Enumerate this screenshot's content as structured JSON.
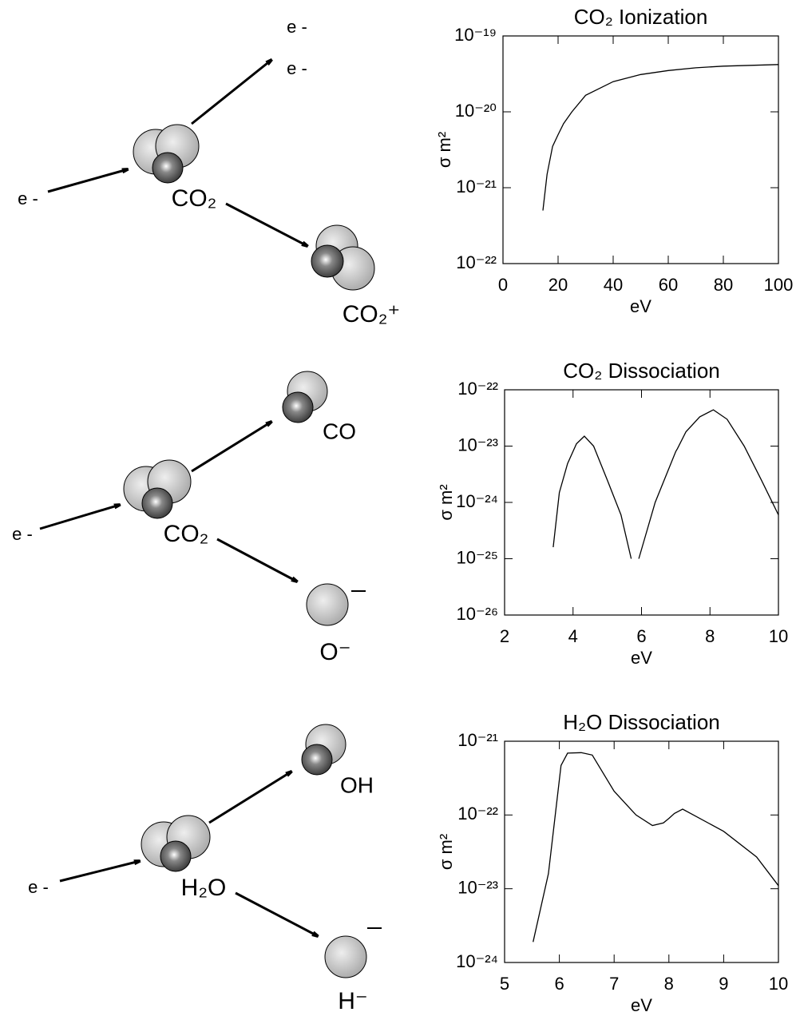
{
  "chart_data": [
    {
      "type": "line",
      "title": "CO₂ Ionization",
      "xlabel": "eV",
      "ylabel": "σ m²",
      "color": "#000000",
      "ylog": true,
      "x": [
        14.5,
        16,
        18,
        20,
        22,
        25,
        30,
        40,
        50,
        60,
        70,
        80,
        90,
        100
      ],
      "values": [
        5e-22,
        1.5e-21,
        3.5e-21,
        5e-21,
        7e-21,
        1e-20,
        1.65e-20,
        2.5e-20,
        3.1e-20,
        3.5e-20,
        3.8e-20,
        4e-20,
        4.1e-20,
        4.2e-20
      ],
      "xlim": [
        0,
        100
      ],
      "xticks": [
        0,
        20,
        40,
        60,
        80,
        100
      ],
      "ylim": [
        1e-22,
        1e-19
      ],
      "yticks": [
        {
          "value": 1e-22,
          "label": "10⁻²²"
        },
        {
          "value": 1e-21,
          "label": "10⁻²¹"
        },
        {
          "value": 1e-20,
          "label": "10⁻²⁰"
        },
        {
          "value": 1e-19,
          "label": "10⁻¹⁹"
        }
      ]
    },
    {
      "type": "line",
      "title": "CO₂ Dissociation",
      "xlabel": "eV",
      "ylabel": "σ m²",
      "color": "#000000",
      "ylog": true,
      "x": [
        3.42,
        3.6,
        3.84,
        4.1,
        4.33,
        4.6,
        5.0,
        5.4,
        5.7,
        5.8,
        5.92,
        6.4,
        7.0,
        7.05,
        7.3,
        7.7,
        8.1,
        8.5,
        9.0,
        9.5,
        10.0
      ],
      "values": [
        1.6e-25,
        1.5e-24,
        4.9e-24,
        1.1e-23,
        1.5e-23,
        1e-23,
        2.5e-24,
        6e-25,
        1e-25,
        null,
        1e-25,
        1e-24,
        8e-24,
        9e-24,
        1.8e-23,
        3.3e-23,
        4.4e-23,
        3e-23,
        1e-23,
        2.5e-24,
        6e-25
      ],
      "xlim": [
        2,
        10
      ],
      "xticks": [
        2,
        4,
        6,
        8,
        10
      ],
      "ylim": [
        1e-26,
        1e-22
      ],
      "yticks": [
        {
          "value": 1e-26,
          "label": "10⁻²⁶"
        },
        {
          "value": 1e-25,
          "label": "10⁻²⁵"
        },
        {
          "value": 1e-24,
          "label": "10⁻²⁴"
        },
        {
          "value": 1e-23,
          "label": "10⁻²³"
        },
        {
          "value": 1e-22,
          "label": "10⁻²²"
        }
      ]
    },
    {
      "type": "line",
      "title": "H₂O Dissociation",
      "xlabel": "eV",
      "ylabel": "σ m²",
      "color": "#000000",
      "ylog": true,
      "x": [
        5.52,
        5.8,
        6.03,
        6.15,
        6.4,
        6.6,
        7.0,
        7.4,
        7.7,
        7.9,
        8.0,
        8.1,
        8.25,
        9.0,
        9.6,
        10.0
      ],
      "values": [
        1.9e-24,
        1.6e-23,
        4.7e-22,
        6.9e-22,
        7e-22,
        6.5e-22,
        2.1e-22,
        1e-22,
        7.2e-23,
        7.8e-23,
        9e-23,
        1.05e-22,
        1.2e-22,
        6e-23,
        2.7e-23,
        1.1e-23
      ],
      "xlim": [
        5,
        10
      ],
      "xticks": [
        5,
        6,
        7,
        8,
        9,
        10
      ],
      "ylim": [
        1e-24,
        1e-21
      ],
      "yticks": [
        {
          "value": 1e-24,
          "label": "10⁻²⁴"
        },
        {
          "value": 1e-23,
          "label": "10⁻²³"
        },
        {
          "value": 1e-22,
          "label": "10⁻²²"
        },
        {
          "value": 1e-21,
          "label": "10⁻²¹"
        }
      ]
    }
  ],
  "diagrams": [
    {
      "labels": [
        "e -",
        "CO₂",
        "e -",
        "e -",
        "CO₂⁺"
      ]
    },
    {
      "labels": [
        "e -",
        "CO₂",
        "CO",
        "O⁻"
      ]
    },
    {
      "labels": [
        "e -",
        "H₂O",
        "OH",
        "H⁻"
      ]
    }
  ]
}
